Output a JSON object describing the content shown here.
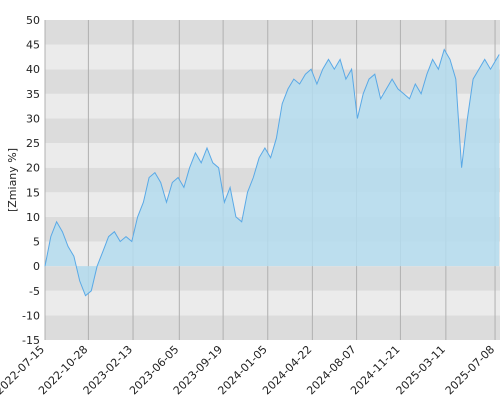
{
  "chart_data": {
    "type": "area",
    "y_label": "[Zmiany %]",
    "x": [
      "2022-07-15",
      "2022-07-29",
      "2022-08-12",
      "2022-08-26",
      "2022-09-09",
      "2022-09-23",
      "2022-10-07",
      "2022-10-21",
      "2022-11-04",
      "2022-11-18",
      "2022-12-02",
      "2022-12-16",
      "2022-12-30",
      "2023-01-13",
      "2023-01-27",
      "2023-02-10",
      "2023-02-24",
      "2023-03-10",
      "2023-03-24",
      "2023-04-07",
      "2023-04-21",
      "2023-05-05",
      "2023-05-19",
      "2023-06-02",
      "2023-06-16",
      "2023-06-30",
      "2023-07-14",
      "2023-07-28",
      "2023-08-11",
      "2023-08-25",
      "2023-09-08",
      "2023-09-22",
      "2023-10-06",
      "2023-10-20",
      "2023-11-03",
      "2023-11-17",
      "2023-12-01",
      "2023-12-15",
      "2023-12-29",
      "2024-01-12",
      "2024-01-26",
      "2024-02-09",
      "2024-02-23",
      "2024-03-08",
      "2024-03-22",
      "2024-04-05",
      "2024-04-19",
      "2024-05-03",
      "2024-05-17",
      "2024-05-31",
      "2024-06-14",
      "2024-06-28",
      "2024-07-12",
      "2024-07-26",
      "2024-08-09",
      "2024-08-23",
      "2024-09-06",
      "2024-09-20",
      "2024-10-04",
      "2024-10-18",
      "2024-11-01",
      "2024-11-15",
      "2024-11-29",
      "2024-12-13",
      "2024-12-27",
      "2025-01-10",
      "2025-01-24",
      "2025-02-07",
      "2025-02-21",
      "2025-03-07",
      "2025-03-21",
      "2025-04-04",
      "2025-04-18",
      "2025-05-02",
      "2025-05-16",
      "2025-05-30",
      "2025-06-13",
      "2025-06-27",
      "2025-07-11",
      "2025-07-18"
    ],
    "values": [
      0,
      6,
      9,
      7,
      4,
      2,
      -3,
      -6,
      -5,
      0,
      3,
      6,
      7,
      5,
      6,
      5,
      10,
      13,
      18,
      19,
      17,
      13,
      17,
      18,
      16,
      20,
      23,
      21,
      24,
      21,
      20,
      13,
      16,
      10,
      9,
      15,
      18,
      22,
      24,
      22,
      26,
      33,
      36,
      38,
      37,
      39,
      40,
      37,
      40,
      42,
      40,
      42,
      38,
      40,
      30,
      35,
      38,
      39,
      34,
      36,
      38,
      36,
      35,
      34,
      37,
      35,
      39,
      42,
      40,
      44,
      42,
      38,
      20,
      30,
      38,
      40,
      42,
      40,
      42,
      43
    ],
    "line_color": "#5aa9e6",
    "fill_color": "#b4dcee",
    "xlim": [
      "2022-07-15",
      "2025-07-20"
    ],
    "xticks": [
      "2022-07-15",
      "2022-10-28",
      "2023-02-13",
      "2023-06-05",
      "2023-09-19",
      "2024-01-05",
      "2024-04-22",
      "2024-08-07",
      "2024-11-21",
      "2025-03-11",
      "2025-07-08"
    ],
    "ylim": [
      -15,
      50
    ],
    "yticks": [
      -15,
      -10,
      -5,
      0,
      5,
      10,
      15,
      20,
      25,
      30,
      35,
      40,
      45,
      50
    ],
    "band_colors": [
      "#ebebeb",
      "#dcdcdc"
    ],
    "grid": true
  }
}
